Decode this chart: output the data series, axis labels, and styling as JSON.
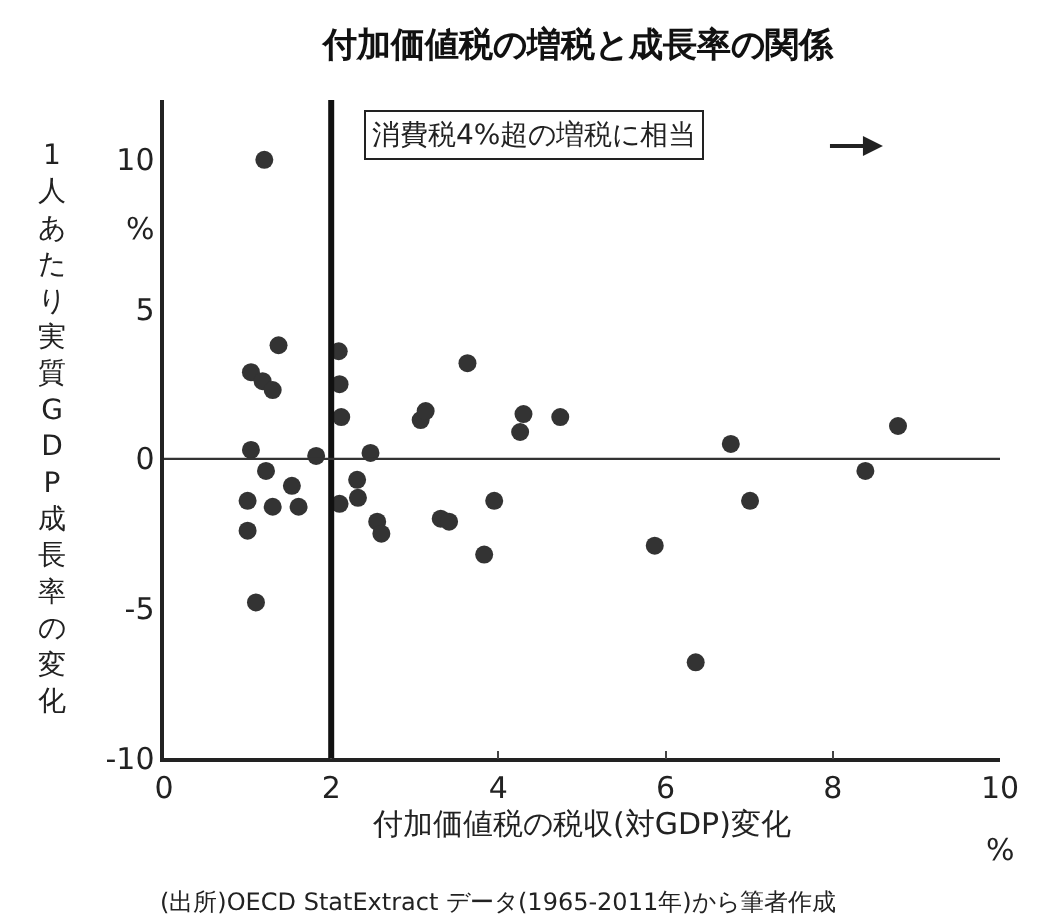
{
  "chart_data": {
    "type": "scatter",
    "title": "付加価値税の増税と成長率の関係",
    "xlabel": "付加価値税の税収(対GDP)変化",
    "ylabel": "1人あたり実質GDP成長率の変化",
    "x": [
      1.2,
      1.37,
      1.04,
      1.18,
      1.3,
      1.04,
      1.22,
      1.0,
      1.3,
      1.53,
      1.61,
      1.0,
      1.1,
      1.82,
      2.09,
      2.1,
      2.12,
      2.1,
      2.31,
      2.32,
      2.47,
      2.55,
      2.6,
      3.07,
      3.13,
      3.63,
      3.31,
      3.41,
      3.95,
      3.83,
      4.26,
      4.3,
      4.74,
      5.87,
      6.36,
      6.78,
      7.01,
      8.39,
      8.78
    ],
    "series": [
      {
        "color": "#333333",
        "values": [
          10.0,
          3.8,
          2.9,
          2.6,
          2.3,
          0.3,
          -0.4,
          -1.4,
          -1.6,
          -0.9,
          -1.6,
          -2.4,
          -4.8,
          0.1,
          3.6,
          2.5,
          1.4,
          -1.5,
          -0.7,
          -1.3,
          0.2,
          -2.1,
          -2.5,
          1.3,
          1.6,
          3.2,
          -2.0,
          -2.1,
          -1.4,
          -3.2,
          0.9,
          1.5,
          1.4,
          -2.9,
          -6.8,
          0.5,
          -1.4,
          -0.4,
          1.1
        ]
      }
    ],
    "marker": "circle",
    "xlim": [
      0,
      10
    ],
    "ylim": [
      -10,
      12
    ],
    "xticks": [
      0,
      2,
      4,
      6,
      8,
      10
    ],
    "yticks": [
      -10,
      -5,
      0,
      5,
      10,
      {
        "value": 7.7,
        "label": "%"
      }
    ],
    "ref_lines": [
      {
        "axis": "x",
        "value": 2,
        "label": "消費税4%超の増税に相当",
        "color": "#111111"
      },
      {
        "axis": "y",
        "value": 0,
        "color": "#333333"
      }
    ],
    "annotations": [
      "%",
      "(出所)OECD StatExtract データ(1965-2011年)から筆者作成"
    ]
  }
}
